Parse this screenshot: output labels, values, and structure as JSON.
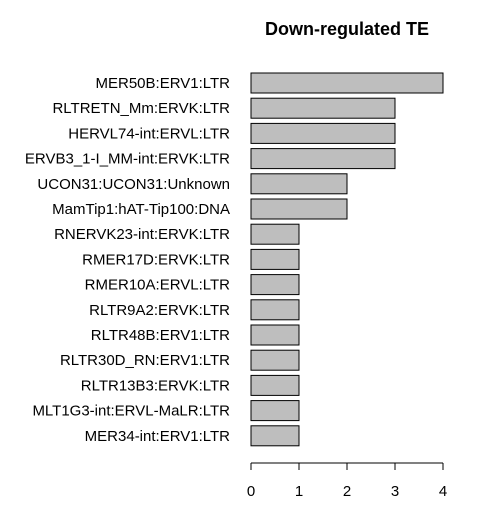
{
  "chart_data": {
    "type": "bar",
    "orientation": "horizontal",
    "title": "Down-regulated TE",
    "xlabel": "",
    "ylabel": "",
    "categories": [
      "MER50B:ERV1:LTR",
      "RLTRETN_Mm:ERVK:LTR",
      "HERVL74-int:ERVL:LTR",
      "ERVB3_1-I_MM-int:ERVK:LTR",
      "UCON31:UCON31:Unknown",
      "MamTip1:hAT-Tip100:DNA",
      "RNERVK23-int:ERVK:LTR",
      "RMER17D:ERVK:LTR",
      "RMER10A:ERVL:LTR",
      "RLTR9A2:ERVK:LTR",
      "RLTR48B:ERV1:LTR",
      "RLTR30D_RN:ERV1:LTR",
      "RLTR13B3:ERVK:LTR",
      "MLT1G3-int:ERVL-MaLR:LTR",
      "MER34-int:ERV1:LTR"
    ],
    "values": [
      4,
      3,
      3,
      3,
      2,
      2,
      1,
      1,
      1,
      1,
      1,
      1,
      1,
      1,
      1
    ],
    "xlim": [
      0,
      4
    ],
    "x_ticks": [
      0,
      1,
      2,
      3,
      4
    ],
    "grid": false,
    "bar_color": "#bebebe",
    "bar_edge_color": "#000000"
  }
}
